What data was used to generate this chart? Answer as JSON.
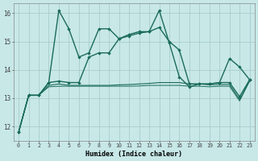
{
  "xlabel": "Humidex (Indice chaleur)",
  "background_color": "#c8e8e8",
  "grid_color": "#a8cccc",
  "line_color": "#1a6b5a",
  "x": [
    0,
    1,
    2,
    3,
    4,
    5,
    6,
    7,
    8,
    9,
    10,
    11,
    12,
    13,
    14,
    15,
    16,
    17,
    18,
    19,
    20,
    21,
    22,
    23
  ],
  "s1": [
    11.8,
    13.1,
    13.1,
    13.55,
    16.1,
    15.45,
    14.45,
    14.6,
    15.45,
    15.45,
    15.1,
    15.25,
    15.35,
    15.35,
    16.1,
    14.95,
    13.75,
    13.4,
    13.5,
    13.5,
    13.55,
    14.4,
    14.1,
    13.65
  ],
  "s2": [
    11.8,
    13.1,
    13.1,
    13.55,
    13.6,
    13.55,
    13.55,
    14.45,
    14.6,
    14.6,
    15.1,
    15.2,
    15.3,
    15.35,
    15.5,
    15.0,
    14.7,
    13.5,
    13.5,
    13.5,
    13.55,
    13.55,
    13.05,
    13.65
  ],
  "s3": [
    11.8,
    13.1,
    13.1,
    13.45,
    13.5,
    13.45,
    13.45,
    13.45,
    13.45,
    13.45,
    13.47,
    13.48,
    13.5,
    13.52,
    13.55,
    13.55,
    13.55,
    13.5,
    13.5,
    13.47,
    13.48,
    13.48,
    12.95,
    13.62
  ],
  "s4": [
    11.8,
    13.1,
    13.1,
    13.4,
    13.42,
    13.42,
    13.42,
    13.42,
    13.42,
    13.42,
    13.42,
    13.42,
    13.43,
    13.45,
    13.45,
    13.45,
    13.45,
    13.42,
    13.42,
    13.4,
    13.42,
    13.42,
    12.9,
    13.6
  ],
  "ylim": [
    11.5,
    16.35
  ],
  "xlim": [
    -0.5,
    23.5
  ],
  "yticks": [
    12,
    13,
    14,
    15,
    16
  ],
  "xticks": [
    0,
    1,
    2,
    3,
    4,
    5,
    6,
    7,
    8,
    9,
    10,
    11,
    12,
    13,
    14,
    15,
    16,
    17,
    18,
    19,
    20,
    21,
    22,
    23
  ]
}
